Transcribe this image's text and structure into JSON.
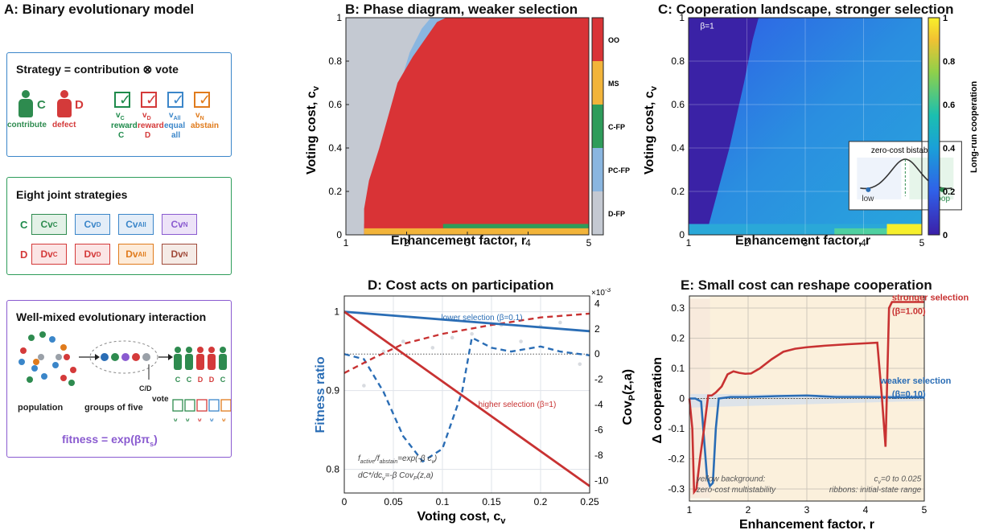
{
  "panelA": {
    "title": "A: Binary evolutionary model",
    "box1": {
      "title": "Strategy = contribution ⊗ vote",
      "contribute_letter": "C",
      "defect_letter": "D",
      "contribute_label": "contribute",
      "defect_label": "defect",
      "votes": [
        {
          "sym": "v",
          "sub": "C",
          "l1": "reward",
          "l2": "C",
          "color": "#1e8a4b"
        },
        {
          "sym": "v",
          "sub": "D",
          "l1": "reward",
          "l2": "D",
          "color": "#d43a3a"
        },
        {
          "sym": "v",
          "sub": "All",
          "l1": "equal",
          "l2": "all",
          "color": "#3b86c9"
        },
        {
          "sym": "v",
          "sub": "N",
          "l1": "abstain",
          "l2": "",
          "color": "#e07b1c"
        }
      ]
    },
    "box2": {
      "title": "Eight joint strategies",
      "row_c": "C",
      "row_d": "D",
      "c_items": [
        {
          "m": "Cv",
          "s": "C"
        },
        {
          "m": "Cv",
          "s": "D"
        },
        {
          "m": "Cv",
          "s": "All"
        },
        {
          "m": "Cv",
          "s": "N"
        }
      ],
      "d_items": [
        {
          "m": "Dv",
          "s": "C"
        },
        {
          "m": "Dv",
          "s": "D"
        },
        {
          "m": "Dv",
          "s": "All"
        },
        {
          "m": "Dv",
          "s": "N"
        }
      ]
    },
    "box3": {
      "title": "Well-mixed evolutionary interaction",
      "cd_label": "C/D",
      "actions": [
        "C",
        "C",
        "D",
        "D",
        "C"
      ],
      "vote_word": "vote",
      "vote_subs": [
        "C",
        "C",
        "D",
        "All",
        "N"
      ],
      "population": "population",
      "groups": "groups of five",
      "fitness": "fitness = exp(βπ",
      "fitness_sub": "s",
      "fitness_end": ")"
    }
  },
  "panelB": {
    "title": "B: Phase diagram, weaker selection",
    "xlabel": "Enhancement factor, r",
    "ylabel": "Voting cost, c",
    "ylabel_sub": "v",
    "xticks": [
      "1",
      "2",
      "3",
      "4",
      "5"
    ],
    "yticks": [
      "0",
      "0.2",
      "0.4",
      "0.6",
      "0.8",
      "1"
    ],
    "legend": [
      "OO",
      "MS",
      "C-FP",
      "PC-FP",
      "D-FP"
    ],
    "colors": {
      "OO": "#d93336",
      "MS": "#f2b43a",
      "C-FP": "#2e9c5a",
      "PC-FP": "#8ab6e0",
      "D-FP": "#c4c9d2"
    }
  },
  "panelC": {
    "title": "C: Cooperation landscape, stronger selection",
    "xlabel": "Enhancement factor, r",
    "ylabel": "Voting cost, c",
    "ylabel_sub": "v",
    "xticks": [
      "1",
      "2",
      "3",
      "4",
      "5"
    ],
    "yticks": [
      "0",
      "0.2",
      "0.4",
      "0.6",
      "0.8",
      "1"
    ],
    "beta_label": "β=1",
    "colorbar_label": "Long-run cooperation",
    "colorbar_ticks": [
      "0",
      "0.2",
      "0.4",
      "0.6",
      "0.8",
      "1"
    ],
    "inset_title": "zero-cost bistability",
    "inset_low": "low",
    "inset_coop": "coop"
  },
  "panelD": {
    "title": "D: Cost acts on participation",
    "xlabel": "Voting cost, c",
    "xlabel_sub": "v",
    "ylabel_left": "Fitness ratio",
    "ylabel_right": "Cov",
    "ylabel_right_sub": "P",
    "ylabel_right_end": "(z,a)",
    "multiplier": "×10",
    "multiplier_exp": "-3",
    "xticks": [
      "0",
      "0.05",
      "0.1",
      "0.15",
      "0.2",
      "0.25"
    ],
    "yticks_left": [
      "0.8",
      "0.9",
      "1"
    ],
    "yticks_right": [
      "4",
      "2",
      "0",
      "-2",
      "-4",
      "-6",
      "-8",
      "-10"
    ],
    "label_lower": "lower selection (β=0.1)",
    "label_higher": "higher selection (β=1)",
    "eq1": "f",
    "eq1_a": "active",
    "eq1_b": "/f",
    "eq1_c": "abstain",
    "eq1_d": "=exp(-β c",
    "eq1_e": "v",
    "eq1_f": ")",
    "eq2": "dC*/dc",
    "eq2_sub": "v",
    "eq2_rest": "=-β Cov",
    "eq2_p": "P",
    "eq2_end": "(z,a)"
  },
  "panelE": {
    "title": "E: Small cost can reshape cooperation",
    "xlabel": "Enhancement factor, r",
    "ylabel": "Δ cooperation",
    "xticks": [
      "1",
      "2",
      "3",
      "4",
      "5"
    ],
    "yticks": [
      "-0.3",
      "-0.2",
      "-0.1",
      "0",
      "0.1",
      "0.2",
      "0.3"
    ],
    "label_strong_1": "stronger selection",
    "label_strong_2": "(β=1.00)",
    "label_weak_1": "weaker selection",
    "label_weak_2": "(β=0.10)",
    "note_l1": "yellow background:",
    "note_l2": "zero-cost multistability",
    "note_r1": "c",
    "note_r1_sub": "v",
    "note_r1_end": "=0 to 0.025",
    "note_r2": "ribbons: initial-state range"
  },
  "chart_data": [
    {
      "type": "heatmap",
      "panel": "B",
      "title": "B: Phase diagram, weaker selection",
      "xlabel": "Enhancement factor, r",
      "ylabel": "Voting cost, cv",
      "xlim": [
        1,
        5
      ],
      "ylim": [
        0,
        1
      ],
      "categories": [
        "OO",
        "MS",
        "C-FP",
        "PC-FP",
        "D-FP"
      ],
      "boundary_dfp_upper": [
        [
          1.3,
          0.05
        ],
        [
          1.38,
          0.12
        ],
        [
          1.5,
          0.25
        ],
        [
          1.6,
          0.4
        ],
        [
          1.75,
          0.55
        ],
        [
          1.9,
          0.7
        ],
        [
          2.05,
          0.84
        ],
        [
          2.25,
          0.95
        ],
        [
          2.4,
          1.0
        ]
      ],
      "boundary_oo_left": [
        [
          1.3,
          0.12
        ],
        [
          1.38,
          0.25
        ],
        [
          1.55,
          0.4
        ],
        [
          1.7,
          0.55
        ],
        [
          1.85,
          0.7
        ],
        [
          2.1,
          0.82
        ],
        [
          2.35,
          0.92
        ],
        [
          2.5,
          0.98
        ],
        [
          2.65,
          1.0
        ]
      ],
      "ms_band_cv_max": 0.03,
      "cfp_band": {
        "r_start": 2.6,
        "cv": [
          0.03,
          0.05
        ]
      }
    },
    {
      "type": "heatmap",
      "panel": "C",
      "title": "C: Cooperation landscape, stronger selection",
      "xlabel": "Enhancement factor, r",
      "ylabel": "Voting cost, cv",
      "xlim": [
        1,
        5
      ],
      "ylim": [
        0,
        1
      ],
      "colorbar_range": [
        0,
        1
      ],
      "low_region_upper_r": [
        [
          0.05,
          1.35
        ],
        [
          0.4,
          1.7
        ],
        [
          0.7,
          1.95
        ],
        [
          0.9,
          2.1
        ],
        [
          1.0,
          2.2
        ]
      ],
      "background_cooperation": 0.25,
      "high_patch": {
        "r": [
          4.4,
          5
        ],
        "cv": [
          0,
          0.05
        ],
        "value": 0.95
      }
    },
    {
      "type": "line",
      "panel": "D",
      "title": "D: Cost acts on participation",
      "xlabel": "Voting cost, cv",
      "ylabel": "Fitness ratio",
      "ylabel_right": "CovP(z,a) ×10^-3",
      "xlim": [
        0,
        0.25
      ],
      "ylim": [
        0.77,
        1.02
      ],
      "ylim_right": [
        -11,
        4.6
      ],
      "series": [
        {
          "name": "lower selection (β=0.1)",
          "axis": "left",
          "style": "solid",
          "x": [
            0,
            0.25
          ],
          "y": [
            1.0,
            0.9753
          ]
        },
        {
          "name": "higher selection (β=1)",
          "axis": "left",
          "style": "solid",
          "x": [
            0,
            0.25
          ],
          "y": [
            1.0,
            0.7788
          ]
        },
        {
          "axis": "right",
          "style": "dashed",
          "color": "#2a6db5",
          "x": [
            0,
            0.02,
            0.04,
            0.06,
            0.08,
            0.1,
            0.12,
            0.13,
            0.15,
            0.17,
            0.2,
            0.22,
            0.25
          ],
          "y": [
            0,
            -0.4,
            -3,
            -6.5,
            -8.5,
            -7.5,
            -3,
            1.3,
            0.5,
            0.2,
            0.6,
            0.2,
            -0.1
          ]
        },
        {
          "axis": "right",
          "style": "dashed",
          "color": "#c83232",
          "x": [
            0,
            0.03,
            0.06,
            0.1,
            0.15,
            0.2,
            0.25
          ],
          "y": [
            -1.5,
            -0.3,
            0.8,
            1.6,
            2.3,
            2.9,
            3.2
          ]
        }
      ]
    },
    {
      "type": "line",
      "panel": "E",
      "title": "E: Small cost can reshape cooperation",
      "xlabel": "Enhancement factor, r",
      "ylabel": "Δ cooperation",
      "xlim": [
        1,
        5
      ],
      "ylim": [
        -0.34,
        0.34
      ],
      "series": [
        {
          "name": "stronger selection (β=1.00)",
          "x": [
            1.0,
            1.05,
            1.08,
            1.12,
            1.18,
            1.25,
            1.32,
            1.38,
            1.45,
            1.55,
            1.65,
            1.75,
            1.85,
            1.95,
            2.05,
            2.2,
            2.4,
            2.6,
            2.8,
            3.0,
            3.3,
            3.7,
            4.2,
            4.28,
            4.34,
            4.4,
            4.45,
            5.0
          ],
          "y": [
            0,
            -0.1,
            -0.31,
            -0.3,
            -0.2,
            -0.1,
            0.01,
            0.01,
            0.02,
            0.04,
            0.08,
            0.09,
            0.085,
            0.082,
            0.083,
            0.1,
            0.13,
            0.155,
            0.165,
            0.17,
            0.175,
            0.18,
            0.185,
            0.0,
            -0.16,
            0.3,
            0.32,
            0.32
          ]
        },
        {
          "name": "weaker selection (β=0.10)",
          "x": [
            1.0,
            1.1,
            1.2,
            1.3,
            1.35,
            1.4,
            1.45,
            1.5,
            1.7,
            2.0,
            2.5,
            3.0,
            3.5,
            4.0,
            4.5,
            5.0
          ],
          "y": [
            0,
            0,
            -0.01,
            -0.26,
            -0.29,
            -0.28,
            -0.1,
            0.0,
            0.005,
            0.005,
            0.008,
            0.01,
            0.005,
            0.005,
            0.004,
            0.004
          ]
        }
      ]
    }
  ]
}
